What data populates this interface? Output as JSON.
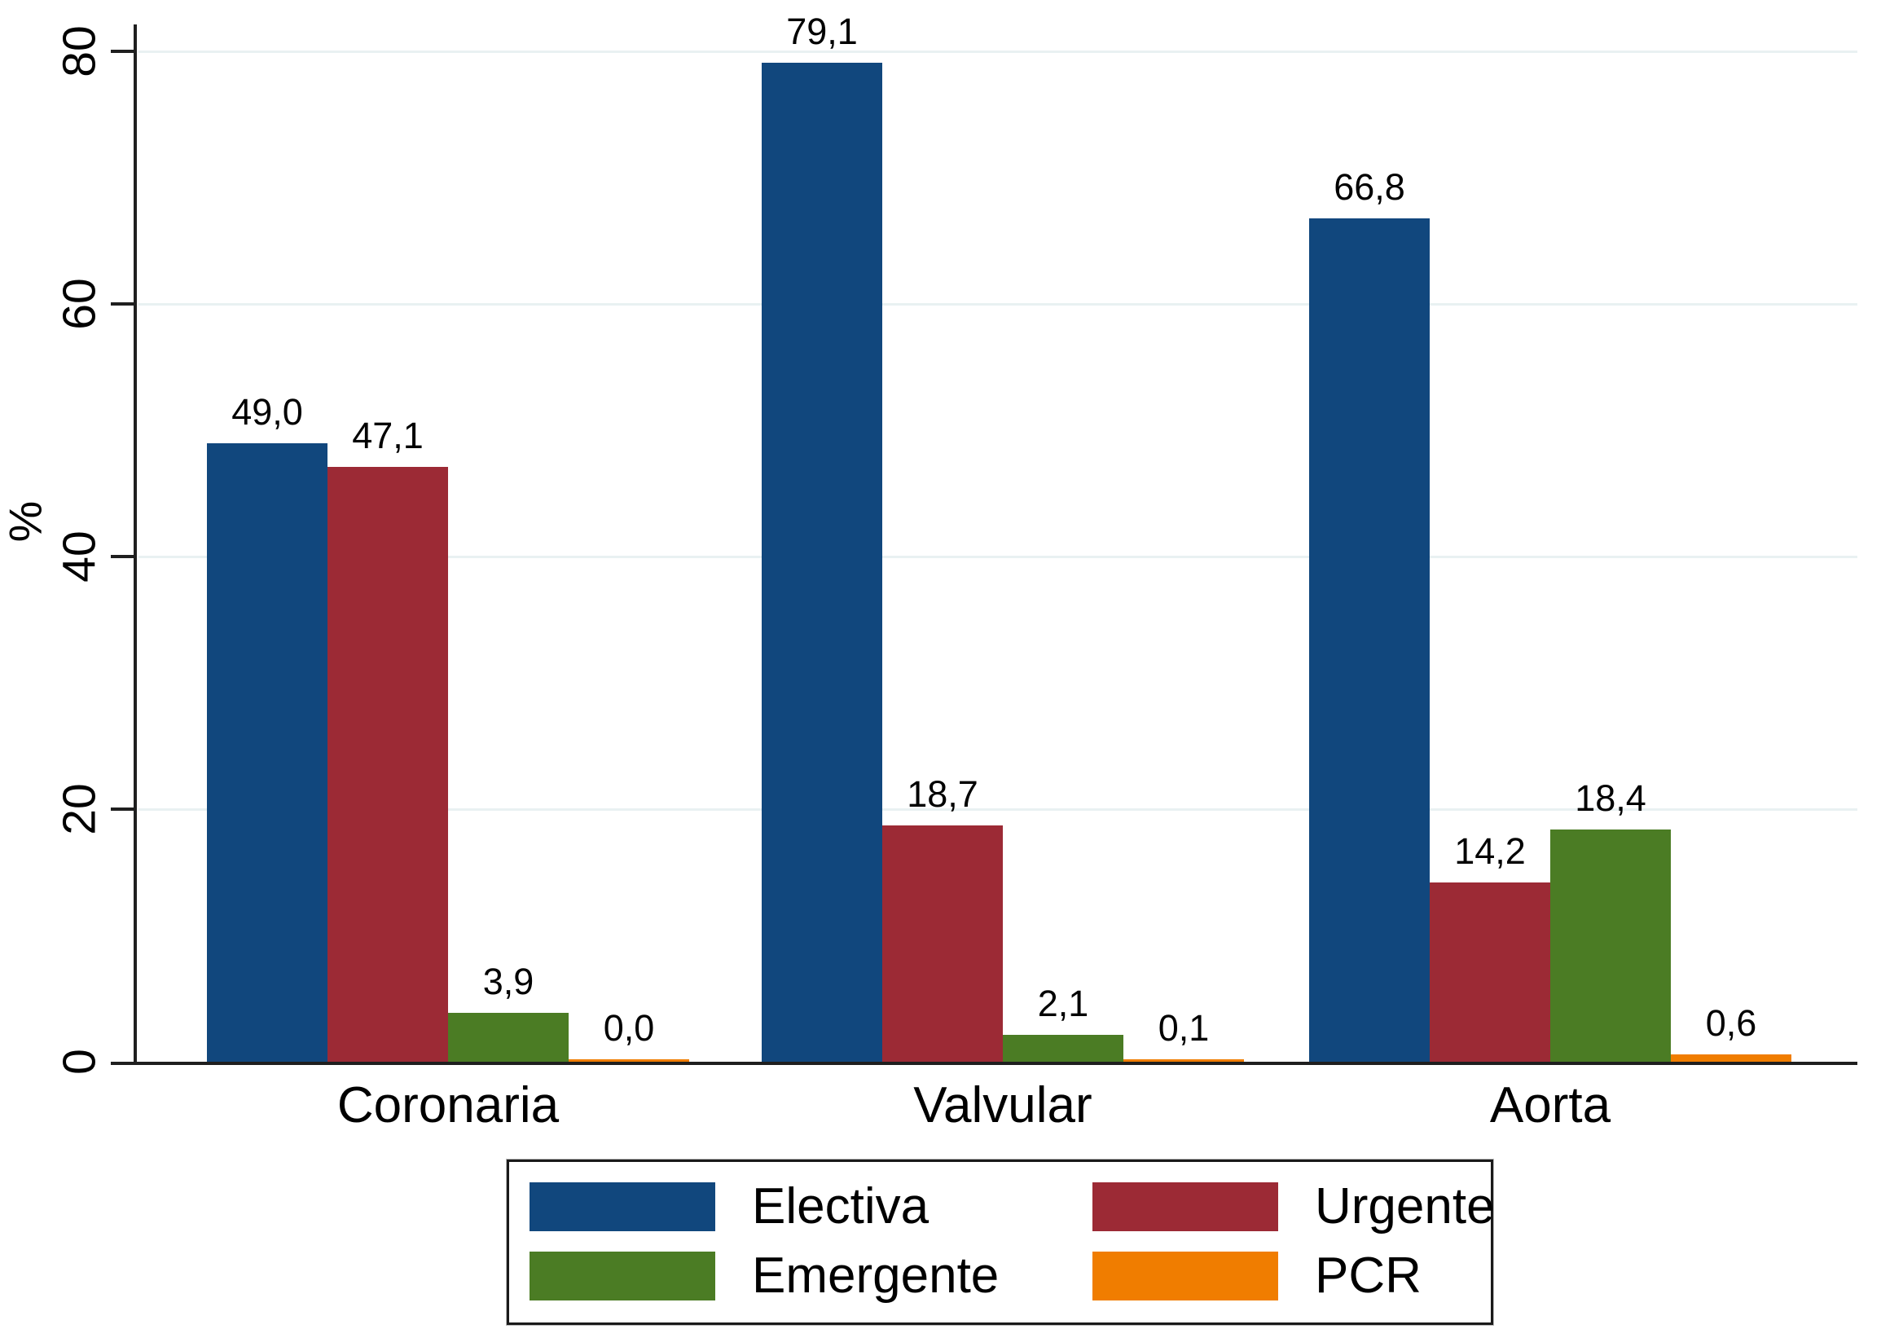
{
  "chart_data": {
    "type": "bar",
    "title": "",
    "categories": [
      "Coronaria",
      "Valvular",
      "Aorta"
    ],
    "series": [
      {
        "name": "Electiva",
        "color": "#11477d",
        "values": [
          49.0,
          79.1,
          66.8
        ],
        "labels": [
          "49,0",
          "79,1",
          "66,8"
        ]
      },
      {
        "name": "Urgente",
        "color": "#9c2a35",
        "values": [
          47.1,
          18.7,
          14.2
        ],
        "labels": [
          "47,1",
          "18,7",
          "14,2"
        ]
      },
      {
        "name": "Emergente",
        "color": "#4b7c24",
        "values": [
          3.9,
          2.1,
          18.4
        ],
        "labels": [
          "3,9",
          "2,1",
          "18,4"
        ]
      },
      {
        "name": "PCR",
        "color": "#f07d00",
        "values": [
          0.0,
          0.1,
          0.6
        ],
        "labels": [
          "0,0",
          "0,1",
          "0,6"
        ]
      }
    ],
    "ylabel": "%",
    "yticks": [
      0,
      20,
      40,
      60,
      80
    ],
    "ytick_labels": [
      "0",
      "20",
      "40",
      "60",
      "80"
    ],
    "ylim": [
      0,
      82
    ],
    "grid": true,
    "gridline_color": "#e9f1f2",
    "axis_color": "#1f1f1f",
    "background_color": "#ffffff",
    "legend_position": "bottom-center",
    "legend_rows": [
      [
        "Electiva",
        "Urgente"
      ],
      [
        "Emergente",
        "PCR"
      ]
    ]
  }
}
